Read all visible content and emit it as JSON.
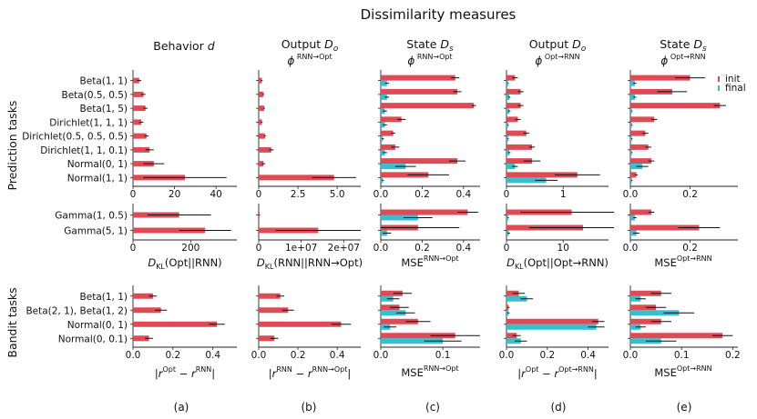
{
  "figure": {
    "title": "Dissimilarity measures",
    "row_labels": [
      "Prediction tasks",
      "Bandit tasks"
    ],
    "legend": [
      {
        "label": "init",
        "color": "#de4b55"
      },
      {
        "label": "final",
        "color": "#35bfcf"
      }
    ],
    "panel_letters": [
      "(a)",
      "(b)",
      "(c)",
      "(d)",
      "(e)"
    ],
    "colors": {
      "init": "#de4b55",
      "final": "#35bfcf",
      "error": "#111111"
    },
    "column_headers": [
      {
        "title": "Behavior d",
        "sub": ""
      },
      {
        "title": "Output Do",
        "sub": "ϕ RNN→Opt"
      },
      {
        "title": "State Ds",
        "sub": "ϕ RNN→Opt"
      },
      {
        "title": "Output Do",
        "sub": "ϕ Opt→RNN"
      },
      {
        "title": "State Ds",
        "sub": "ϕ Opt→RNN"
      }
    ]
  },
  "chart_data": [
    {
      "type": "bar",
      "orientation": "horizontal",
      "group": "prediction-main",
      "categories": [
        "Beta(1, 1)",
        "Beta(0.5, 0.5)",
        "Beta(1, 5)",
        "Dirichlet(1, 1, 1)",
        "Dirichlet(0.5, 0.5, 0.5)",
        "Dirichlet(1, 1, 0.1)",
        "Normal(0, 1)",
        "Normal(1, 1)"
      ],
      "panels": [
        {
          "column": "a",
          "title": "Behavior d",
          "xlim": [
            0,
            50
          ],
          "ticks": [
            "0",
            "20",
            "40"
          ],
          "tick_values": [
            0,
            20,
            40
          ],
          "xlabel": "",
          "series": [
            {
              "name": "init",
              "values": [
                3,
                5,
                6,
                4,
                6.5,
                8,
                10,
                25
              ],
              "errors": [
                1,
                1,
                1,
                1,
                1,
                2,
                5,
                20
              ]
            }
          ]
        },
        {
          "column": "b",
          "title": "Output Do",
          "xlim": [
            0,
            6.5
          ],
          "ticks": [
            "0",
            "2.5",
            "5.0"
          ],
          "tick_values": [
            0,
            2.5,
            5
          ],
          "xlabel": "",
          "series": [
            {
              "name": "init",
              "values": [
                0.2,
                0.3,
                0.35,
                0.2,
                0.4,
                0.8,
                0.3,
                4.8
              ],
              "errors": [
                0.05,
                0.05,
                0.05,
                0.05,
                0.05,
                0.15,
                0.1,
                1.4
              ]
            }
          ]
        },
        {
          "column": "c",
          "title": "State Ds",
          "xlim": [
            0,
            0.48
          ],
          "ticks": [
            "0.0",
            "0.2",
            "0.4"
          ],
          "tick_values": [
            0,
            0.2,
            0.4
          ],
          "xlabel": "",
          "series": [
            {
              "name": "init",
              "values": [
                0.36,
                0.37,
                0.45,
                0.1,
                0.06,
                0.07,
                0.37,
                0.23
              ],
              "errors": [
                0.02,
                0.02,
                0.01,
                0.02,
                0.01,
                0.02,
                0.04,
                0.1
              ]
            },
            {
              "name": "final",
              "values": [
                0.03,
                0.03,
                0.02,
                0.02,
                0.01,
                0.02,
                0.12,
                0.01
              ],
              "errors": [
                0.01,
                0.01,
                0.01,
                0.01,
                0.005,
                0.01,
                0.05,
                0.005
              ]
            }
          ]
        },
        {
          "column": "d",
          "title": "Output Do",
          "xlim": [
            0,
            1.8
          ],
          "ticks": [
            "0",
            "1"
          ],
          "tick_values": [
            0,
            1
          ],
          "xlabel": "",
          "series": [
            {
              "name": "init",
              "values": [
                0.15,
                0.25,
                0.25,
                0.2,
                0.35,
                0.45,
                0.45,
                1.25
              ],
              "errors": [
                0.05,
                0.05,
                0.05,
                0.05,
                0.05,
                0.05,
                0.15,
                0.4
              ]
            },
            {
              "name": "final",
              "values": [
                0.03,
                0.05,
                0.05,
                0.03,
                0.03,
                0.05,
                0.15,
                0.7
              ],
              "errors": [
                0.01,
                0.02,
                0.02,
                0.01,
                0.01,
                0.02,
                0.05,
                0.2
              ]
            }
          ]
        },
        {
          "column": "e",
          "title": "State Ds",
          "xlim": [
            0,
            0.36
          ],
          "ticks": [
            "0.0",
            "0.2"
          ],
          "tick_values": [
            0,
            0.2
          ],
          "xlabel": "",
          "series": [
            {
              "name": "init",
              "values": [
                0.2,
                0.14,
                0.3,
                0.08,
                0.05,
                0.06,
                0.07,
                0.02
              ],
              "errors": [
                0.05,
                0.05,
                0.02,
                0.01,
                0.01,
                0.01,
                0.01,
                0.005
              ]
            },
            {
              "name": "final",
              "values": [
                0.015,
                0.015,
                0.005,
                0.005,
                0.005,
                0.005,
                0.04,
                0.005
              ],
              "errors": [
                0.005,
                0.005,
                0.002,
                0.002,
                0.002,
                0.002,
                0.02,
                0.002
              ]
            }
          ]
        }
      ]
    },
    {
      "type": "bar",
      "orientation": "horizontal",
      "group": "prediction-gamma",
      "categories": [
        "Gamma(1, 0.5)",
        "Gamma(5, 1)"
      ],
      "panels": [
        {
          "column": "a",
          "xlim": [
            0,
            360
          ],
          "ticks": [
            "0",
            "200"
          ],
          "tick_values": [
            0,
            200
          ],
          "xlabel": "DKL(Opt||RNN)",
          "series": [
            {
              "name": "init",
              "values": [
                160,
                250
              ],
              "errors": [
                110,
                90
              ]
            }
          ]
        },
        {
          "column": "b",
          "xlim": [
            0,
            24000000
          ],
          "ticks": [
            "0",
            "1e+07",
            "2e+07"
          ],
          "tick_values": [
            0,
            10000000,
            20000000
          ],
          "xlabel": "DKL(RNN||RNN→Opt)",
          "series": [
            {
              "name": "init",
              "values": [
                200000,
                14000000
              ],
              "errors": [
                100000,
                10000000
              ]
            }
          ]
        },
        {
          "column": "c",
          "xlim": [
            0,
            0.48
          ],
          "ticks": [
            "0.0",
            "0.2",
            "0.4"
          ],
          "tick_values": [
            0,
            0.2,
            0.4
          ],
          "xlabel": "MSERNN→Opt",
          "series": [
            {
              "name": "init",
              "values": [
                0.42,
                0.18
              ],
              "errors": [
                0.05,
                0.2
              ]
            },
            {
              "name": "final",
              "values": [
                0.18,
                0.03
              ],
              "errors": [
                0.07,
                0.02
              ]
            }
          ]
        },
        {
          "column": "d",
          "xlim": [
            0,
            18
          ],
          "ticks": [
            "0",
            "10"
          ],
          "tick_values": [
            0,
            10
          ],
          "xlabel": "DKL(Opt||Opt→RNN)",
          "series": [
            {
              "name": "init",
              "values": [
                11.5,
                13.5
              ],
              "errors": [
                9,
                9.5
              ]
            },
            {
              "name": "final",
              "values": [
                0.3,
                0.4
              ],
              "errors": [
                0.1,
                0.2
              ]
            }
          ]
        },
        {
          "column": "e",
          "xlim": [
            0,
            0.36
          ],
          "ticks": [
            "0.0",
            "0.2"
          ],
          "tick_values": [
            0,
            0.2
          ],
          "xlabel": "MSEOpt→RNN",
          "series": [
            {
              "name": "init",
              "values": [
                0.07,
                0.23
              ],
              "errors": [
                0.01,
                0.07
              ]
            },
            {
              "name": "final",
              "values": [
                0.015,
                0.02
              ],
              "errors": [
                0.005,
                0.01
              ]
            }
          ]
        }
      ]
    },
    {
      "type": "bar",
      "orientation": "horizontal",
      "group": "bandit",
      "categories": [
        "Beta(1, 1)",
        "Beta(2, 1), Beta(1, 2)",
        "Normal(0, 1)",
        "Normal(0, 0.1)"
      ],
      "panels": [
        {
          "column": "a",
          "xlim": [
            0,
            0.52
          ],
          "ticks": [
            "0.0",
            "0.2",
            "0.4"
          ],
          "tick_values": [
            0,
            0.2,
            0.4
          ],
          "xlabel": "|rOpt − rRNN|",
          "series": [
            {
              "name": "init",
              "values": [
                0.1,
                0.14,
                0.42,
                0.08
              ],
              "errors": [
                0.02,
                0.03,
                0.04,
                0.02
              ]
            }
          ]
        },
        {
          "column": "b",
          "xlim": [
            0,
            0.52
          ],
          "ticks": [
            "0.0",
            "0.2",
            "0.4"
          ],
          "tick_values": [
            0,
            0.2,
            0.4
          ],
          "xlabel": "|rRNN − rRNN→Opt|",
          "series": [
            {
              "name": "init",
              "values": [
                0.11,
                0.15,
                0.42,
                0.08
              ],
              "errors": [
                0.02,
                0.03,
                0.05,
                0.02
              ]
            }
          ]
        },
        {
          "column": "c",
          "xlim": [
            0,
            0.16
          ],
          "ticks": [
            "0.0",
            "0.1"
          ],
          "tick_values": [
            0,
            0.1
          ],
          "xlabel": "MSERNN→Opt",
          "series": [
            {
              "name": "init",
              "values": [
                0.035,
                0.03,
                0.06,
                0.12
              ],
              "errors": [
                0.015,
                0.015,
                0.02,
                0.04
              ]
            },
            {
              "name": "final",
              "values": [
                0.02,
                0.04,
                0.015,
                0.1
              ],
              "errors": [
                0.01,
                0.015,
                0.01,
                0.03
              ]
            }
          ]
        },
        {
          "column": "d",
          "xlim": [
            0,
            0.5
          ],
          "ticks": [
            "0.0",
            "0.2",
            "0.4"
          ],
          "tick_values": [
            0,
            0.2,
            0.4
          ],
          "xlabel": "|rOpt − rOpt→RNN|",
          "series": [
            {
              "name": "init",
              "values": [
                0.06,
                0.01,
                0.45,
                0.05
              ],
              "errors": [
                0.03,
                0.005,
                0.03,
                0.02
              ]
            },
            {
              "name": "final",
              "values": [
                0.1,
                0.01,
                0.44,
                0.07
              ],
              "errors": [
                0.03,
                0.005,
                0.04,
                0.03
              ]
            }
          ]
        },
        {
          "column": "e",
          "xlim": [
            0,
            0.21
          ],
          "ticks": [
            "0.0",
            "0.1",
            "0.2"
          ],
          "tick_values": [
            0,
            0.1,
            0.2
          ],
          "xlabel": "MSEOpt→RNN",
          "series": [
            {
              "name": "init",
              "values": [
                0.06,
                0.05,
                0.06,
                0.18
              ],
              "errors": [
                0.02,
                0.02,
                0.02,
                0.02
              ]
            },
            {
              "name": "final",
              "values": [
                0.02,
                0.095,
                0.02,
                0.06
              ],
              "errors": [
                0.01,
                0.03,
                0.01,
                0.03
              ]
            }
          ]
        }
      ]
    }
  ]
}
